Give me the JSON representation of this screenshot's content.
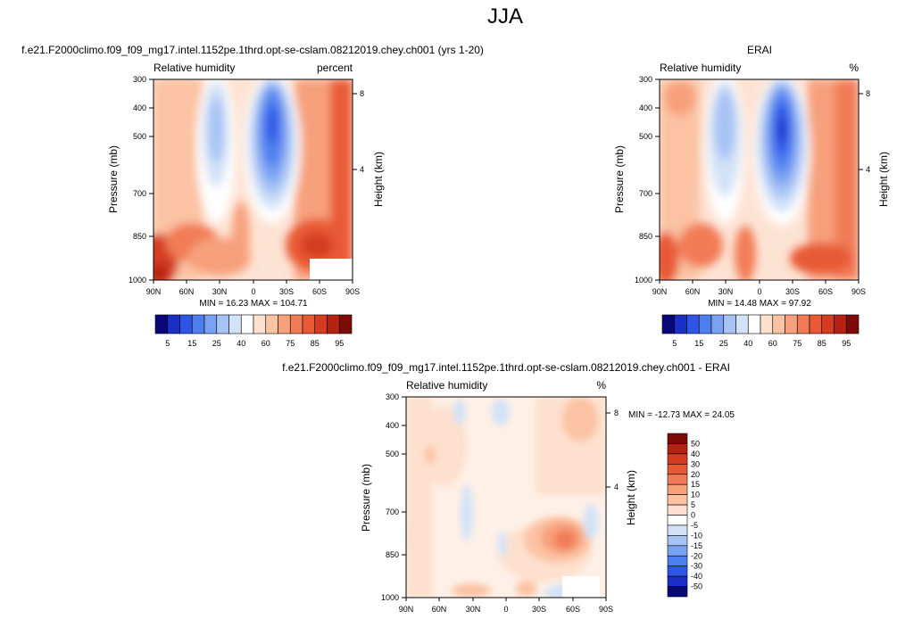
{
  "title": "JJA",
  "chart_data": [
    {
      "type": "heatmap",
      "title": "f.e21.F2000climo.f09_f09_mg17.intel.1152pe.1thrd.opt-se-cslam.08212019.chey.ch001 (yrs 1-20)",
      "left_label": "Relative humidity",
      "right_label": "percent",
      "xlabel": "",
      "ylabel": "Pressure (mb)",
      "ylabel_right": "Height (km)",
      "x_ticks": [
        "90N",
        "60N",
        "30N",
        "0",
        "30S",
        "60S",
        "90S"
      ],
      "y_ticks": [
        "300",
        "400",
        "500",
        "700",
        "850",
        "1000"
      ],
      "height_ticks": [
        "8",
        "4"
      ],
      "stats": "MIN =  16.23  MAX = 104.71"
    },
    {
      "type": "heatmap",
      "title": "ERAI",
      "left_label": "Relative humidity",
      "right_label": "%",
      "xlabel": "",
      "ylabel": "Pressure (mb)",
      "ylabel_right": "Height (km)",
      "x_ticks": [
        "90N",
        "60N",
        "30N",
        "0",
        "30S",
        "60S",
        "90S"
      ],
      "y_ticks": [
        "300",
        "400",
        "500",
        "700",
        "850",
        "1000"
      ],
      "height_ticks": [
        "8",
        "4"
      ],
      "stats": "MIN =  14.48  MAX =  97.92"
    },
    {
      "type": "heatmap",
      "title": "f.e21.F2000climo.f09_f09_mg17.intel.1152pe.1thrd.opt-se-cslam.08212019.chey.ch001 - ERAI",
      "left_label": "Relative humidity",
      "right_label": "%",
      "xlabel": "",
      "ylabel": "Pressure (mb)",
      "ylabel_right": "Height (km)",
      "x_ticks": [
        "90N",
        "60N",
        "30N",
        "0",
        "30S",
        "60S",
        "90S"
      ],
      "y_ticks": [
        "300",
        "400",
        "500",
        "700",
        "850",
        "1000"
      ],
      "height_ticks": [
        "8",
        "4"
      ],
      "stats": "MIN = -12.73  MAX =  24.05"
    }
  ],
  "colorbar_abs": {
    "labels": [
      "5",
      "15",
      "25",
      "40",
      "60",
      "75",
      "85",
      "95"
    ],
    "colors": [
      "#08087a",
      "#1a2fc4",
      "#2e55e6",
      "#4f7fef",
      "#7aa2f2",
      "#a7c3f4",
      "#d2e2f7",
      "#ffffff",
      "#fde0cd",
      "#fbc2a3",
      "#f7a07c",
      "#f27b57",
      "#e85a36",
      "#d43c20",
      "#b52212",
      "#7e0a08"
    ]
  },
  "colorbar_diff": {
    "labels": [
      "50",
      "40",
      "30",
      "20",
      "15",
      "10",
      "5",
      "0",
      "-5",
      "-10",
      "-15",
      "-20",
      "-30",
      "-40",
      "-50"
    ],
    "colors": [
      "#7e0a08",
      "#b52212",
      "#d43c20",
      "#e85a36",
      "#f27b57",
      "#f7a07c",
      "#fbc2a3",
      "#fde0cd",
      "#ffffff",
      "#d2e2f7",
      "#a7c3f4",
      "#7aa2f2",
      "#4f7fef",
      "#2e55e6",
      "#1a2fc4",
      "#08087a"
    ]
  }
}
